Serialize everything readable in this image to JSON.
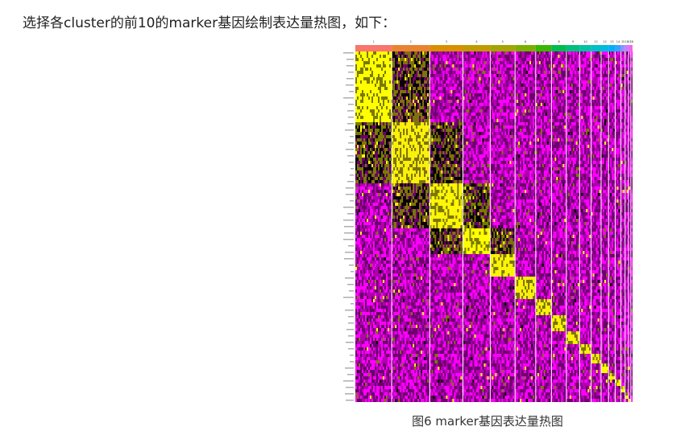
{
  "document": {
    "intro_text": "选择各cluster的前10的marker基因绘制表达量热图，如下：",
    "caption": "图6 marker基因表达量热图"
  },
  "heatmap": {
    "cluster_labels": [
      "1",
      "2",
      "3",
      "4",
      "5",
      "6",
      "7",
      "8",
      "9",
      "10",
      "11",
      "12",
      "13",
      "14",
      "15",
      "16",
      "17",
      "18"
    ],
    "cluster_colors": [
      "#f8766d",
      "#ea8331",
      "#d89000",
      "#c09b00",
      "#a3a500",
      "#7cae00",
      "#39b600",
      "#00bb4e",
      "#00bf7d",
      "#00c1a3",
      "#00bfc4",
      "#00bae0",
      "#00b0f6",
      "#35a2ff",
      "#9590ff",
      "#c77cff",
      "#e76bf3",
      "#fa62d4"
    ],
    "cluster_widths": [
      44,
      46,
      40,
      33,
      30,
      25,
      19,
      18,
      16,
      14,
      12,
      9,
      8,
      7,
      5,
      4,
      3,
      2
    ],
    "palette": {
      "low": "#ff00ff",
      "mid": "#000000",
      "high": "#ffff00"
    }
  }
}
